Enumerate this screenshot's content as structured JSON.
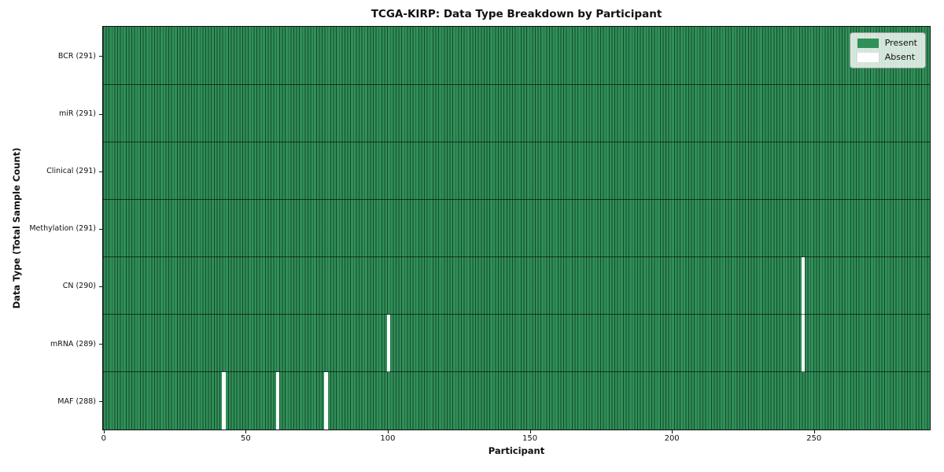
{
  "chart_data": {
    "type": "heatmap",
    "title": "TCGA-KIRP: Data Type Breakdown by Participant",
    "xlabel": "Participant",
    "ylabel": "Data Type (Total Sample Count)",
    "n_participants": 291,
    "x_ticks": [
      0,
      50,
      100,
      150,
      200,
      250
    ],
    "rows": [
      {
        "label": "BCR (291)",
        "data_type": "BCR",
        "present_count": 291,
        "absent_participants": []
      },
      {
        "label": "miR (291)",
        "data_type": "miR",
        "present_count": 291,
        "absent_participants": []
      },
      {
        "label": "Clinical (291)",
        "data_type": "Clinical",
        "present_count": 291,
        "absent_participants": []
      },
      {
        "label": "Methylation (291)",
        "data_type": "Methylation",
        "present_count": 291,
        "absent_participants": []
      },
      {
        "label": "CN (290)",
        "data_type": "CN",
        "present_count": 290,
        "absent_participants": [
          246
        ]
      },
      {
        "label": "mRNA (289)",
        "data_type": "mRNA",
        "present_count": 289,
        "absent_participants": [
          100,
          246
        ]
      },
      {
        "label": "MAF (288)",
        "data_type": "MAF",
        "present_count": 288,
        "absent_participants": [
          42,
          61,
          78
        ]
      }
    ],
    "legend": [
      {
        "label": "Present",
        "color": "#2f9058"
      },
      {
        "label": "Absent",
        "color": "#ffffff"
      }
    ],
    "colors": {
      "present": "#2f9058",
      "absent": "#ffffff",
      "cell_edge": "rgba(0,0,0,0.50)",
      "row_divider": "rgba(0,0,0,0.60)",
      "plot_border": "#111111"
    },
    "legend_position": "upper-right",
    "grid": "cell-edges"
  }
}
